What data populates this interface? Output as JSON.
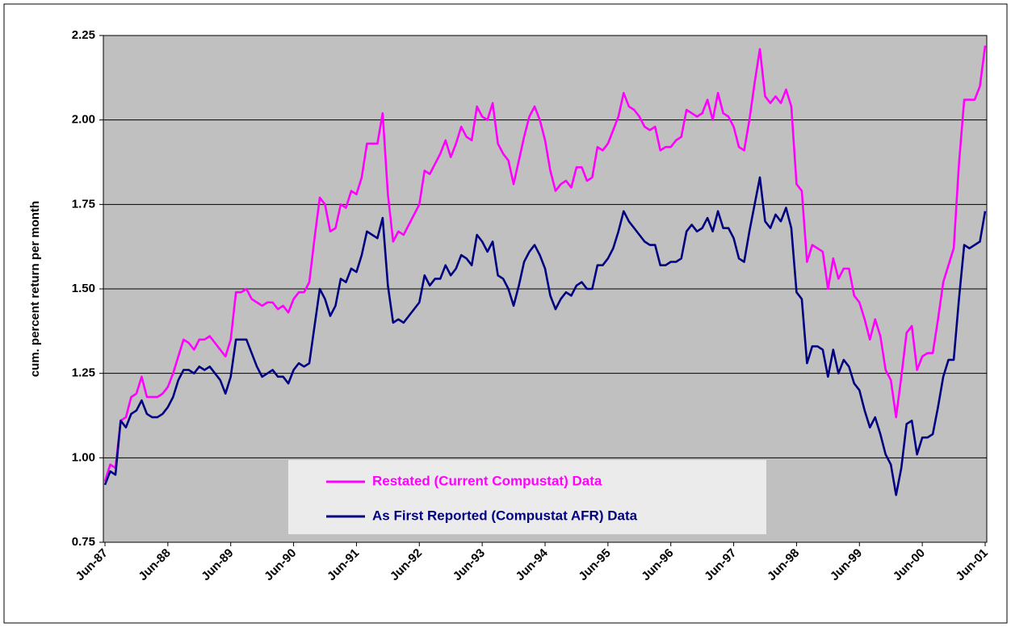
{
  "chart_data": {
    "type": "line",
    "y_label": "cum. percent return per month",
    "categories": [
      "Jun-87",
      null,
      null,
      null,
      null,
      null,
      null,
      null,
      null,
      null,
      null,
      null,
      "Jun-88",
      null,
      null,
      null,
      null,
      null,
      null,
      null,
      null,
      null,
      null,
      null,
      "Jun-89",
      null,
      null,
      null,
      null,
      null,
      null,
      null,
      null,
      null,
      null,
      null,
      "Jun-90",
      null,
      null,
      null,
      null,
      null,
      null,
      null,
      null,
      null,
      null,
      null,
      "Jun-91",
      null,
      null,
      null,
      null,
      null,
      null,
      null,
      null,
      null,
      null,
      null,
      "Jun-92",
      null,
      null,
      null,
      null,
      null,
      null,
      null,
      null,
      null,
      null,
      null,
      "Jun-93",
      null,
      null,
      null,
      null,
      null,
      null,
      null,
      null,
      null,
      null,
      null,
      "Jun-94",
      null,
      null,
      null,
      null,
      null,
      null,
      null,
      null,
      null,
      null,
      null,
      "Jun-95",
      null,
      null,
      null,
      null,
      null,
      null,
      null,
      null,
      null,
      null,
      null,
      "Jun-96",
      null,
      null,
      null,
      null,
      null,
      null,
      null,
      null,
      null,
      null,
      null,
      "Jun-97",
      null,
      null,
      null,
      null,
      null,
      null,
      null,
      null,
      null,
      null,
      null,
      "Jun-98",
      null,
      null,
      null,
      null,
      null,
      null,
      null,
      null,
      null,
      null,
      null,
      "Jun-99",
      null,
      null,
      null,
      null,
      null,
      null,
      null,
      null,
      null,
      null,
      null,
      "Jun-00",
      null,
      null,
      null,
      null,
      null,
      null,
      null,
      null,
      null,
      null,
      null,
      "Jun-01"
    ],
    "series": [
      {
        "name": "Restated (Current Compustat) Data",
        "color": "#ff00ff",
        "values": [
          0.93,
          0.98,
          0.97,
          1.11,
          1.12,
          1.18,
          1.19,
          1.24,
          1.18,
          1.18,
          1.18,
          1.19,
          1.21,
          1.25,
          1.3,
          1.35,
          1.34,
          1.32,
          1.35,
          1.35,
          1.36,
          1.34,
          1.32,
          1.3,
          1.35,
          1.49,
          1.49,
          1.5,
          1.47,
          1.46,
          1.45,
          1.46,
          1.46,
          1.44,
          1.45,
          1.43,
          1.47,
          1.49,
          1.49,
          1.52,
          1.65,
          1.77,
          1.75,
          1.67,
          1.68,
          1.75,
          1.74,
          1.79,
          1.78,
          1.83,
          1.93,
          1.93,
          1.93,
          2.02,
          1.78,
          1.64,
          1.67,
          1.66,
          1.69,
          1.72,
          1.75,
          1.85,
          1.84,
          1.87,
          1.9,
          1.94,
          1.89,
          1.93,
          1.98,
          1.95,
          1.94,
          2.04,
          2.01,
          2.0,
          2.05,
          1.93,
          1.9,
          1.88,
          1.81,
          1.88,
          1.95,
          2.01,
          2.04,
          2.0,
          1.94,
          1.85,
          1.79,
          1.81,
          1.82,
          1.8,
          1.86,
          1.86,
          1.82,
          1.83,
          1.92,
          1.91,
          1.93,
          1.97,
          2.01,
          2.08,
          2.04,
          2.03,
          2.01,
          1.98,
          1.97,
          1.98,
          1.91,
          1.92,
          1.92,
          1.94,
          1.95,
          2.03,
          2.02,
          2.01,
          2.02,
          2.06,
          2.0,
          2.08,
          2.02,
          2.01,
          1.98,
          1.92,
          1.91,
          2.0,
          2.11,
          2.21,
          2.07,
          2.05,
          2.07,
          2.05,
          2.09,
          2.04,
          1.81,
          1.79,
          1.58,
          1.63,
          1.62,
          1.61,
          1.5,
          1.59,
          1.53,
          1.56,
          1.56,
          1.48,
          1.46,
          1.41,
          1.35,
          1.41,
          1.36,
          1.26,
          1.23,
          1.12,
          1.24,
          1.37,
          1.39,
          1.26,
          1.3,
          1.31,
          1.31,
          1.41,
          1.52,
          1.57,
          1.62,
          1.87,
          2.06,
          2.06,
          2.06,
          2.1,
          2.22
        ]
      },
      {
        "name": "As First Reported (Compustat AFR) Data",
        "color": "#000080",
        "values": [
          0.92,
          0.96,
          0.95,
          1.11,
          1.09,
          1.13,
          1.14,
          1.17,
          1.13,
          1.12,
          1.12,
          1.13,
          1.15,
          1.18,
          1.23,
          1.26,
          1.26,
          1.25,
          1.27,
          1.26,
          1.27,
          1.25,
          1.23,
          1.19,
          1.24,
          1.35,
          1.35,
          1.35,
          1.31,
          1.27,
          1.24,
          1.25,
          1.26,
          1.24,
          1.24,
          1.22,
          1.26,
          1.28,
          1.27,
          1.28,
          1.39,
          1.5,
          1.47,
          1.42,
          1.45,
          1.53,
          1.52,
          1.56,
          1.55,
          1.6,
          1.67,
          1.66,
          1.65,
          1.71,
          1.51,
          1.4,
          1.41,
          1.4,
          1.42,
          1.44,
          1.46,
          1.54,
          1.51,
          1.53,
          1.53,
          1.57,
          1.54,
          1.56,
          1.6,
          1.59,
          1.57,
          1.66,
          1.64,
          1.61,
          1.64,
          1.54,
          1.53,
          1.5,
          1.45,
          1.51,
          1.58,
          1.61,
          1.63,
          1.6,
          1.56,
          1.48,
          1.44,
          1.47,
          1.49,
          1.48,
          1.51,
          1.52,
          1.5,
          1.5,
          1.57,
          1.57,
          1.59,
          1.62,
          1.67,
          1.73,
          1.7,
          1.68,
          1.66,
          1.64,
          1.63,
          1.63,
          1.57,
          1.57,
          1.58,
          1.58,
          1.59,
          1.67,
          1.69,
          1.67,
          1.68,
          1.71,
          1.67,
          1.73,
          1.68,
          1.68,
          1.65,
          1.59,
          1.58,
          1.67,
          1.75,
          1.83,
          1.7,
          1.68,
          1.72,
          1.7,
          1.74,
          1.68,
          1.49,
          1.47,
          1.28,
          1.33,
          1.33,
          1.32,
          1.24,
          1.32,
          1.25,
          1.29,
          1.27,
          1.22,
          1.2,
          1.14,
          1.09,
          1.12,
          1.07,
          1.01,
          0.98,
          0.89,
          0.97,
          1.1,
          1.11,
          1.01,
          1.06,
          1.06,
          1.07,
          1.15,
          1.24,
          1.29,
          1.29,
          1.47,
          1.63,
          1.62,
          1.63,
          1.64,
          1.73
        ]
      }
    ],
    "ylim": [
      0.75,
      2.25
    ],
    "yticks": [
      0.75,
      {
        "value": 1,
        "label": "1.00"
      },
      1.25,
      {
        "value": 1.5,
        "label": "1.50"
      },
      1.75,
      {
        "value": 2,
        "label": "2.00"
      },
      2.25
    ],
    "grid": true,
    "legend": "bottom"
  }
}
